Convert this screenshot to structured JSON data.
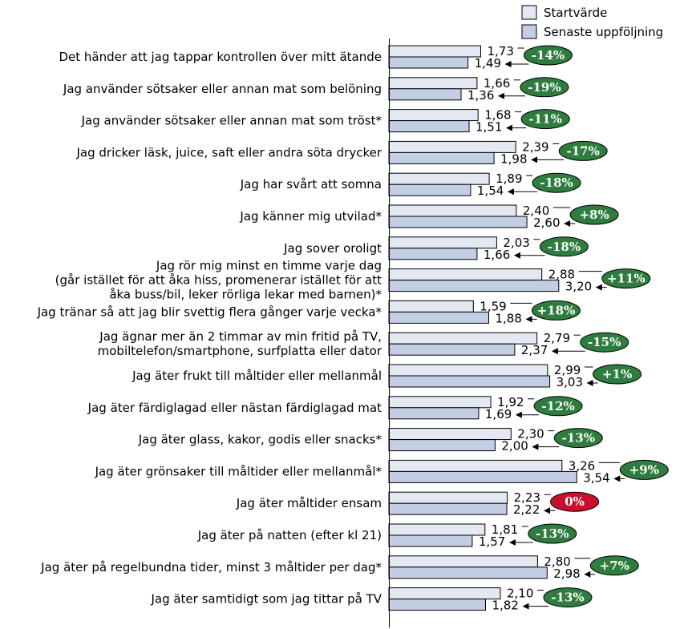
{
  "chart_data": {
    "type": "bar",
    "orientation": "horizontal",
    "legend_position": "top-right",
    "grid": false,
    "xlim": [
      0,
      4
    ],
    "categories": [
      [
        "Det händer att jag tappar kontrollen över mitt ätande"
      ],
      [
        "Jag använder sötsaker eller annan mat som belöning"
      ],
      [
        "Jag använder sötsaker eller annan mat som tröst*"
      ],
      [
        "Jag dricker läsk, juice, saft eller andra söta drycker"
      ],
      [
        "Jag har svårt att somna"
      ],
      [
        "Jag känner mig utvilad*"
      ],
      [
        "Jag sover oroligt"
      ],
      [
        "Jag rör mig minst en timme varje dag",
        "(går istället för att åka hiss, promenerar istället för att",
        "åka buss/bil, leker rörliga lekar med barnen)*"
      ],
      [
        "Jag tränar så att jag blir svettig flera gånger varje vecka*"
      ],
      [
        "Jag ägnar mer än 2 timmar av min fritid på TV,",
        "mobiltelefon/smartphone, surfplatta eller dator"
      ],
      [
        "Jag äter frukt till måltider eller mellanmål"
      ],
      [
        "Jag äter färdiglagad eller nästan färdiglagad mat"
      ],
      [
        "Jag äter glass, kakor, godis eller snacks*"
      ],
      [
        "Jag äter grönsaker till måltider eller mellanmål*"
      ],
      [
        "Jag äter måltider ensam"
      ],
      [
        "Jag äter på natten (efter kl 21)"
      ],
      [
        "Jag äter på regelbundna tider, minst 3 måltider per dag*"
      ],
      [
        "Jag äter samtidigt som jag tittar på TV"
      ]
    ],
    "series": [
      {
        "name": "Startvärde",
        "color": "#e3e8f2",
        "values": [
          1.73,
          1.66,
          1.68,
          2.39,
          1.89,
          2.4,
          2.03,
          2.88,
          1.59,
          2.79,
          2.99,
          1.92,
          2.3,
          3.26,
          2.23,
          1.81,
          2.8,
          2.1
        ],
        "labels": [
          "1,73",
          "1,66",
          "1,68",
          "2,39",
          "1,89",
          "2,40",
          "2,03",
          "2,88",
          "1,59",
          "2,79",
          "2,99",
          "1,92",
          "2,30",
          "3,26",
          "2,23",
          "1,81",
          "2,80",
          "2,10"
        ]
      },
      {
        "name": "Senaste uppföljning",
        "color": "#c3cde3",
        "values": [
          1.49,
          1.36,
          1.51,
          1.98,
          1.54,
          2.6,
          1.66,
          3.2,
          1.88,
          2.37,
          3.03,
          1.69,
          2.0,
          3.54,
          2.22,
          1.57,
          2.98,
          1.82
        ],
        "labels": [
          "1,49",
          "1,36",
          "1,51",
          "1,98",
          "1,54",
          "2,60",
          "1,66",
          "3,20",
          "1,88",
          "2,37",
          "3,03",
          "1,69",
          "2,00",
          "3,54",
          "2,22",
          "1,57",
          "2,98",
          "1,82"
        ]
      }
    ],
    "change_labels": [
      "-14%",
      "-19%",
      "-11%",
      "-17%",
      "-18%",
      "+8%",
      "-18%",
      "+11%",
      "+18%",
      "-15%",
      "+1%",
      "-12%",
      "-13%",
      "+9%",
      "0%",
      "-13%",
      "+7%",
      "-13%"
    ],
    "change_colors": [
      "#2e7d3e",
      "#2e7d3e",
      "#2e7d3e",
      "#2e7d3e",
      "#2e7d3e",
      "#2e7d3e",
      "#2e7d3e",
      "#2e7d3e",
      "#2e7d3e",
      "#2e7d3e",
      "#2e7d3e",
      "#2e7d3e",
      "#2e7d3e",
      "#2e7d3e",
      "#c8102e",
      "#2e7d3e",
      "#2e7d3e",
      "#2e7d3e"
    ]
  }
}
